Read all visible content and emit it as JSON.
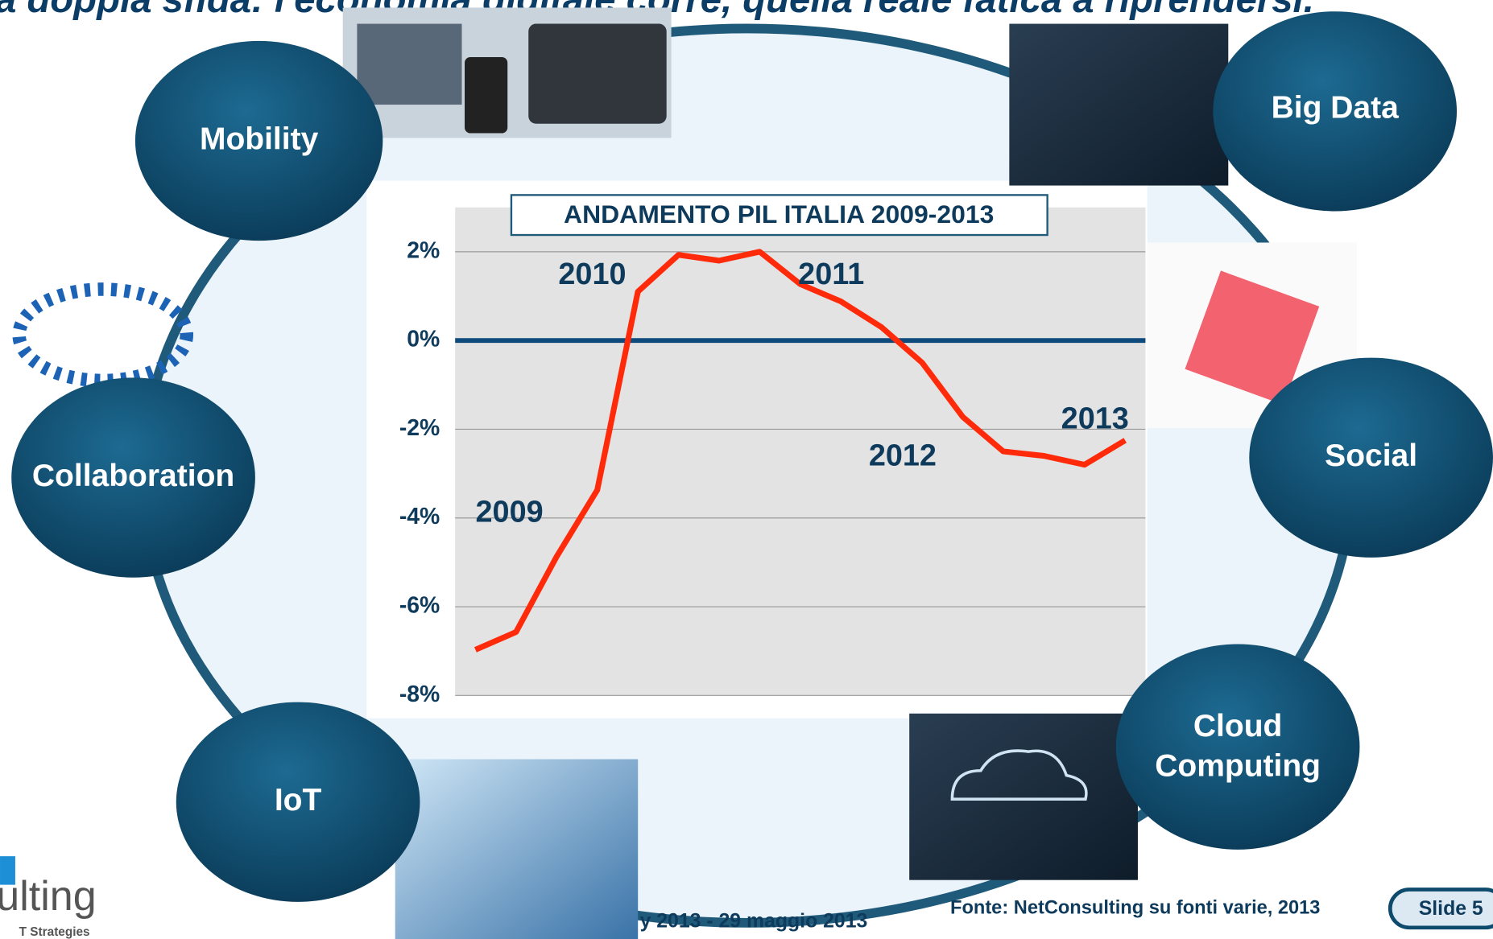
{
  "slide": {
    "headline": "a doppia sfida: l'economia digitale corre, quella reale fatica a riprendersi.",
    "topics": [
      "Mobility",
      "Big Data",
      "Collaboration",
      "Social",
      "IoT",
      "Cloud",
      "Computing"
    ],
    "footer_event": "y 2013  - 29 maggio 2013",
    "source": "Fonte: NetConsulting su fonti varie, 2013",
    "slide_number": "Slide 5",
    "logo": "ulting",
    "logo_sub": "T Strategies"
  },
  "chart_data": {
    "type": "line",
    "title": "ANDAMENTO PIL ITALIA 2009-2013",
    "categories": [
      null,
      null,
      null,
      null,
      null,
      null,
      null,
      null,
      null,
      null,
      null,
      null,
      null,
      null,
      null,
      null,
      null
    ],
    "series": [
      {
        "name": null,
        "color": "#ff2a0a",
        "values": [
          -6.97,
          -6.57,
          -4.87,
          -3.37,
          1.1,
          1.93,
          1.8,
          2.0,
          1.27,
          0.88,
          0.3,
          -0.5,
          -1.72,
          -2.5,
          -2.6,
          -2.8,
          -2.25
        ]
      }
    ],
    "annotations": [
      "2009",
      "2010",
      "2011",
      "2012",
      "2013"
    ],
    "ylim": [
      -8,
      3
    ],
    "yticks": [
      {
        "value": 2,
        "label": "2%"
      },
      {
        "value": 0,
        "label": "0%"
      },
      {
        "value": -2,
        "label": "-2%"
      },
      {
        "value": -4,
        "label": "-4%"
      },
      {
        "value": -6,
        "label": "-6%"
      },
      {
        "value": -8,
        "label": "-8%"
      }
    ],
    "grid": true
  }
}
